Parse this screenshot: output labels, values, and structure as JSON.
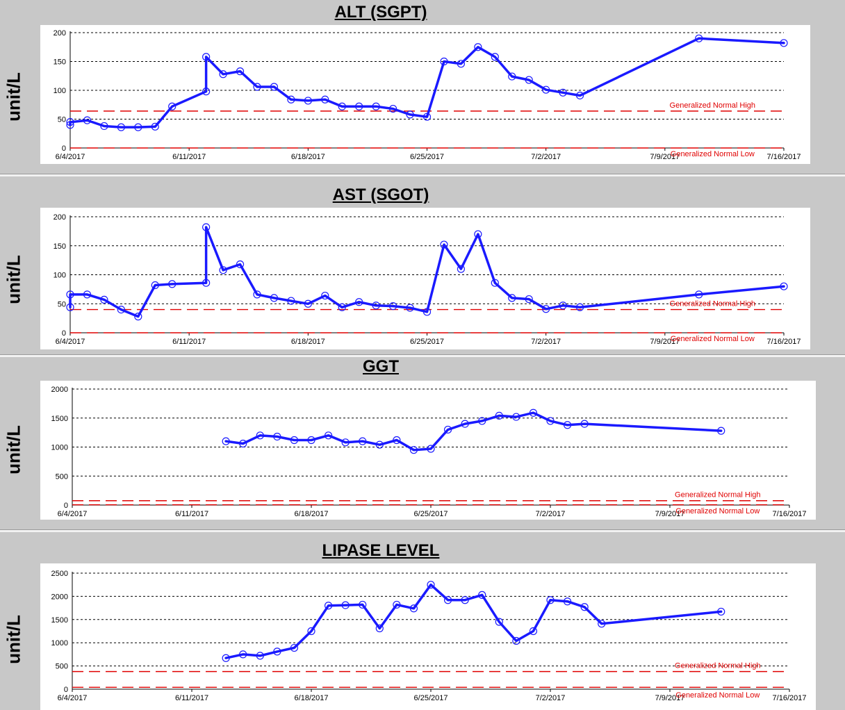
{
  "chart_data": [
    {
      "type": "line",
      "title": "ALT (SGPT)",
      "ylabel": "unit/L",
      "xlabel": "",
      "x_ticks": [
        "6/4/2017",
        "6/11/2017",
        "6/18/2017",
        "6/25/2017",
        "7/2/2017",
        "7/9/2017",
        "7/16/2017"
      ],
      "y_ticks": [
        0,
        50,
        100,
        150,
        200
      ],
      "ylim": [
        0,
        200
      ],
      "xlim": [
        "6/4/2017",
        "7/16/2017"
      ],
      "grid": true,
      "reference_lines": [
        {
          "name": "Generalized Normal High",
          "value": 64,
          "color": "#e00000"
        },
        {
          "name": "Generalized Normal Low",
          "value": 0,
          "color": "#e00000"
        }
      ],
      "series": [
        {
          "color": "#1a1aff",
          "x": [
            "6/4/2017",
            "6/4/2017",
            "6/5/2017",
            "6/6/2017",
            "6/7/2017",
            "6/8/2017",
            "6/9/2017",
            "6/10/2017",
            "6/12/2017",
            "6/12/2017",
            "6/13/2017",
            "6/14/2017",
            "6/15/2017",
            "6/16/2017",
            "6/17/2017",
            "6/18/2017",
            "6/19/2017",
            "6/20/2017",
            "6/21/2017",
            "6/22/2017",
            "6/23/2017",
            "6/24/2017",
            "6/25/2017",
            "6/26/2017",
            "6/27/2017",
            "6/28/2017",
            "6/29/2017",
            "6/30/2017",
            "7/1/2017",
            "7/2/2017",
            "7/3/2017",
            "7/4/2017",
            "7/11/2017",
            "7/16/2017"
          ],
          "y": [
            40,
            45,
            48,
            38,
            36,
            36,
            37,
            72,
            98,
            158,
            128,
            133,
            106,
            106,
            84,
            82,
            84,
            72,
            72,
            72,
            68,
            58,
            54,
            150,
            146,
            175,
            158,
            124,
            118,
            101,
            96,
            91,
            190,
            182
          ]
        }
      ]
    },
    {
      "type": "line",
      "title": "AST (SGOT)",
      "ylabel": "unit/L",
      "xlabel": "",
      "x_ticks": [
        "6/4/2017",
        "6/11/2017",
        "6/18/2017",
        "6/25/2017",
        "7/2/2017",
        "7/9/2017",
        "7/16/2017"
      ],
      "y_ticks": [
        0,
        50,
        100,
        150,
        200
      ],
      "ylim": [
        0,
        200
      ],
      "xlim": [
        "6/4/2017",
        "7/16/2017"
      ],
      "grid": true,
      "reference_lines": [
        {
          "name": "Generalized Normal High",
          "value": 40,
          "color": "#e00000"
        },
        {
          "name": "Generalized Normal Low",
          "value": 0,
          "color": "#e00000"
        }
      ],
      "series": [
        {
          "color": "#1a1aff",
          "x": [
            "6/4/2017",
            "6/4/2017",
            "6/5/2017",
            "6/6/2017",
            "6/7/2017",
            "6/8/2017",
            "6/9/2017",
            "6/10/2017",
            "6/12/2017",
            "6/12/2017",
            "6/13/2017",
            "6/14/2017",
            "6/15/2017",
            "6/16/2017",
            "6/17/2017",
            "6/18/2017",
            "6/19/2017",
            "6/20/2017",
            "6/21/2017",
            "6/22/2017",
            "6/23/2017",
            "6/24/2017",
            "6/25/2017",
            "6/26/2017",
            "6/27/2017",
            "6/28/2017",
            "6/29/2017",
            "6/30/2017",
            "7/1/2017",
            "7/2/2017",
            "7/3/2017",
            "7/4/2017",
            "7/11/2017",
            "7/16/2017"
          ],
          "y": [
            44,
            66,
            66,
            57,
            40,
            28,
            82,
            84,
            86,
            182,
            108,
            118,
            66,
            60,
            55,
            50,
            64,
            44,
            53,
            47,
            46,
            43,
            36,
            152,
            110,
            170,
            86,
            60,
            58,
            41,
            47,
            44,
            66,
            80
          ]
        }
      ]
    },
    {
      "type": "line",
      "title": "GGT",
      "ylabel": "unit/L",
      "xlabel": "",
      "x_ticks": [
        "6/4/2017",
        "6/11/2017",
        "6/18/2017",
        "6/25/2017",
        "7/2/2017",
        "7/9/2017",
        "7/16/2017"
      ],
      "y_ticks": [
        0,
        500,
        1000,
        1500,
        2000
      ],
      "ylim": [
        0,
        2000
      ],
      "xlim": [
        "6/4/2017",
        "7/16/2017"
      ],
      "grid": true,
      "reference_lines": [
        {
          "name": "Generalized Normal High",
          "value": 75,
          "color": "#e00000"
        },
        {
          "name": "Generalized Normal Low",
          "value": 5,
          "color": "#e00000"
        }
      ],
      "series": [
        {
          "color": "#1a1aff",
          "x": [
            "6/13/2017",
            "6/14/2017",
            "6/15/2017",
            "6/16/2017",
            "6/17/2017",
            "6/18/2017",
            "6/19/2017",
            "6/20/2017",
            "6/21/2017",
            "6/22/2017",
            "6/23/2017",
            "6/24/2017",
            "6/25/2017",
            "6/26/2017",
            "6/27/2017",
            "6/28/2017",
            "6/29/2017",
            "6/30/2017",
            "7/1/2017",
            "7/2/2017",
            "7/3/2017",
            "7/4/2017",
            "7/12/2017"
          ],
          "y": [
            1100,
            1060,
            1200,
            1180,
            1120,
            1120,
            1200,
            1080,
            1100,
            1040,
            1120,
            950,
            970,
            1300,
            1400,
            1450,
            1540,
            1520,
            1590,
            1450,
            1380,
            1400,
            1280
          ]
        }
      ]
    },
    {
      "type": "line",
      "title": "LIPASE LEVEL",
      "ylabel": "unit/L",
      "xlabel": "",
      "x_ticks": [
        "6/4/2017",
        "6/11/2017",
        "6/18/2017",
        "6/25/2017",
        "7/2/2017",
        "7/9/2017",
        "7/16/2017"
      ],
      "y_ticks": [
        0,
        500,
        1000,
        1500,
        2000,
        2500
      ],
      "ylim": [
        0,
        2500
      ],
      "xlim": [
        "6/4/2017",
        "7/16/2017"
      ],
      "grid": true,
      "reference_lines": [
        {
          "name": "Generalized Normal High",
          "value": 380,
          "color": "#e00000"
        },
        {
          "name": "Generalized Normal Low",
          "value": 40,
          "color": "#e00000"
        }
      ],
      "series": [
        {
          "color": "#1a1aff",
          "x": [
            "6/13/2017",
            "6/14/2017",
            "6/15/2017",
            "6/16/2017",
            "6/17/2017",
            "6/18/2017",
            "6/19/2017",
            "6/20/2017",
            "6/21/2017",
            "6/22/2017",
            "6/23/2017",
            "6/24/2017",
            "6/25/2017",
            "6/26/2017",
            "6/27/2017",
            "6/28/2017",
            "6/29/2017",
            "6/30/2017",
            "7/1/2017",
            "7/2/2017",
            "7/3/2017",
            "7/4/2017",
            "7/5/2017",
            "7/12/2017"
          ],
          "y": [
            670,
            750,
            720,
            810,
            890,
            1250,
            1800,
            1810,
            1820,
            1310,
            1820,
            1740,
            2250,
            1920,
            1920,
            2030,
            1450,
            1040,
            1250,
            1920,
            1890,
            1770,
            1410,
            1670
          ]
        }
      ]
    }
  ]
}
